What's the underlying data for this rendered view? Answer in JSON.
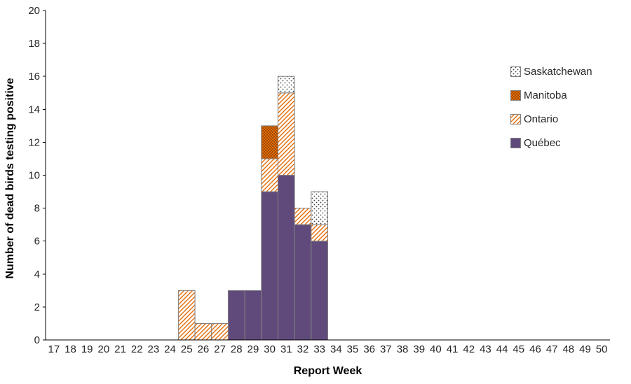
{
  "chart_data": {
    "type": "bar",
    "stacked": true,
    "title": "",
    "xlabel": "Report Week",
    "ylabel": "Number of dead birds testing positive",
    "ylim": [
      0,
      20
    ],
    "ytick_step": 2,
    "grid": false,
    "legend_position": "right",
    "bar_stroke": "#808080",
    "categories": [
      17,
      18,
      19,
      20,
      21,
      22,
      23,
      24,
      25,
      26,
      27,
      28,
      29,
      30,
      31,
      32,
      33,
      34,
      35,
      36,
      37,
      38,
      39,
      40,
      41,
      42,
      43,
      44,
      45,
      46,
      47,
      48,
      49,
      50
    ],
    "series": [
      {
        "name": "Québec",
        "fill": {
          "type": "solid",
          "color": "#604a7b"
        },
        "values": [
          0,
          0,
          0,
          0,
          0,
          0,
          0,
          0,
          0,
          0,
          0,
          3,
          3,
          9,
          10,
          7,
          6,
          0,
          0,
          0,
          0,
          0,
          0,
          0,
          0,
          0,
          0,
          0,
          0,
          0,
          0,
          0,
          0,
          0
        ]
      },
      {
        "name": "Ontario",
        "fill": {
          "type": "hatch",
          "bg": "#ffffff",
          "fg": "#e36c09"
        },
        "values": [
          0,
          0,
          0,
          0,
          0,
          0,
          0,
          0,
          3,
          1,
          1,
          0,
          0,
          2,
          5,
          1,
          1,
          0,
          0,
          0,
          0,
          0,
          0,
          0,
          0,
          0,
          0,
          0,
          0,
          0,
          0,
          0,
          0,
          0
        ]
      },
      {
        "name": "Manitoba",
        "fill": {
          "type": "dots",
          "bg": "#e36c09",
          "fg": "#8a4000",
          "size": 4,
          "r": 1.0
        },
        "values": [
          0,
          0,
          0,
          0,
          0,
          0,
          0,
          0,
          0,
          0,
          0,
          0,
          0,
          2,
          0,
          0,
          0,
          0,
          0,
          0,
          0,
          0,
          0,
          0,
          0,
          0,
          0,
          0,
          0,
          0,
          0,
          0,
          0,
          0
        ]
      },
      {
        "name": "Saskatchewan",
        "fill": {
          "type": "dots",
          "bg": "#ffffff",
          "fg": "#404040",
          "size": 6,
          "r": 0.9
        },
        "values": [
          0,
          0,
          0,
          0,
          0,
          0,
          0,
          0,
          0,
          0,
          0,
          0,
          0,
          0,
          1,
          0,
          2,
          0,
          0,
          0,
          0,
          0,
          0,
          0,
          0,
          0,
          0,
          0,
          0,
          0,
          0,
          0,
          0,
          0
        ]
      }
    ],
    "legend": [
      {
        "label": "Saskatchewan",
        "series": "Saskatchewan"
      },
      {
        "label": "Manitoba",
        "series": "Manitoba"
      },
      {
        "label": "Ontario",
        "series": "Ontario"
      },
      {
        "label": "Québec",
        "series": "Québec"
      }
    ]
  }
}
